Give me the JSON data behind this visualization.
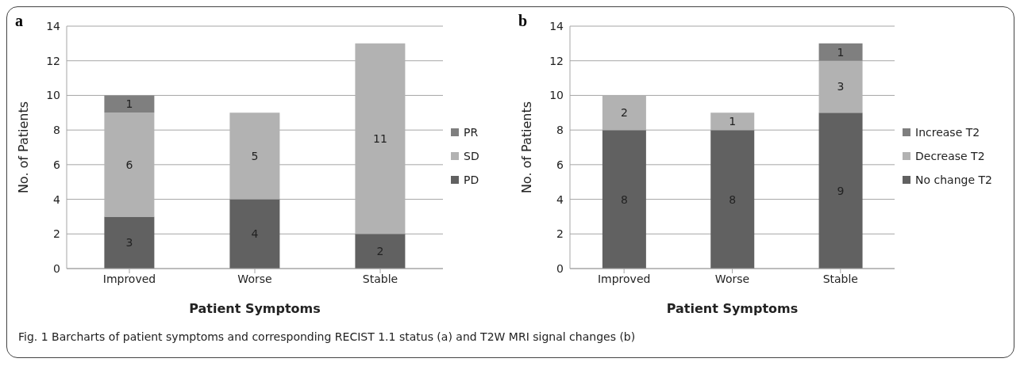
{
  "chart_data": [
    {
      "type": "bar",
      "title": "a",
      "xlabel": "Patient Symptoms",
      "ylabel": "No. of Patients",
      "categories": [
        "Improved",
        "Worse",
        "Stable"
      ],
      "stacked": true,
      "data_labels": true,
      "grid": "y",
      "legend": "right",
      "ylim": [
        0,
        14
      ],
      "yticks": [
        0,
        2,
        4,
        6,
        8,
        10,
        12,
        14
      ],
      "series": [
        {
          "name": "PD",
          "color": "#616161",
          "values": [
            3,
            4,
            2
          ]
        },
        {
          "name": "SD",
          "color": "#b2b2b2",
          "values": [
            6,
            5,
            11
          ]
        },
        {
          "name": "PR",
          "color": "#7f7f7f",
          "values": [
            1,
            null,
            null
          ]
        }
      ],
      "annotations": [
        "Fig. 1  Barcharts of patient symptoms and corresponding RECIST 1.1 status (a) and T2W MRI signal changes (b)"
      ]
    },
    {
      "type": "bar",
      "title": "b",
      "xlabel": "Patient Symptoms",
      "ylabel": "No. of Patients",
      "categories": [
        "Improved",
        "Worse",
        "Stable"
      ],
      "stacked": true,
      "data_labels": true,
      "grid": "y",
      "legend": "right",
      "ylim": [
        0,
        14
      ],
      "yticks": [
        0,
        2,
        4,
        6,
        8,
        10,
        12,
        14
      ],
      "series": [
        {
          "name": "No change T2",
          "color": "#616161",
          "values": [
            8,
            8,
            9
          ]
        },
        {
          "name": "Decrease T2",
          "color": "#b2b2b2",
          "values": [
            2,
            1,
            3
          ]
        },
        {
          "name": "Increase T2",
          "color": "#7f7f7f",
          "values": [
            null,
            null,
            1
          ]
        }
      ]
    }
  ]
}
